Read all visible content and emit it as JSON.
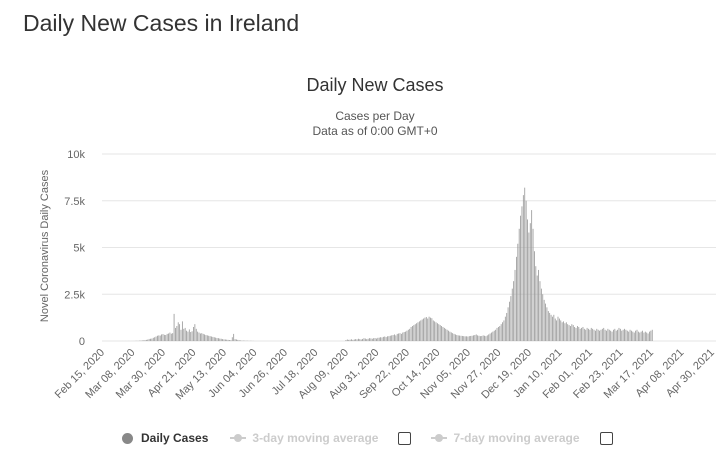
{
  "page": {
    "title": "Daily New Cases in Ireland"
  },
  "chart_data": {
    "type": "bar",
    "title": "Daily New Cases",
    "subtitle_1": "Cases per Day",
    "subtitle_2": "Data as of 0:00 GMT+0",
    "ylabel": "Novel Coronavirus Daily Cases",
    "xlabel": "",
    "ylim": [
      0,
      10000
    ],
    "y_ticks": [
      0,
      2500,
      5000,
      7500,
      10000
    ],
    "y_tick_labels": [
      "0",
      "2.5k",
      "5k",
      "7.5k",
      "10k"
    ],
    "x_start": "Feb 15, 2020",
    "x_end": "May 03, 2021",
    "x_tick_labels": [
      "Feb 15, 2020",
      "Mar 08, 2020",
      "Mar 30, 2020",
      "Apr 21, 2020",
      "May 13, 2020",
      "Jun 04, 2020",
      "Jun 26, 2020",
      "Jul 18, 2020",
      "Aug 09, 2020",
      "Aug 31, 2020",
      "Sep 22, 2020",
      "Oct 14, 2020",
      "Nov 05, 2020",
      "Nov 27, 2020",
      "Dec 19, 2020",
      "Jan 10, 2021",
      "Feb 01, 2021",
      "Feb 23, 2021",
      "Mar 17, 2021",
      "Apr 08, 2021",
      "Apr 30, 2021"
    ],
    "bar_color": "#999999",
    "grid": true,
    "series_segments": [
      {
        "name": "Daily Cases",
        "start": "Feb 15, 2020",
        "values": [
          0,
          0,
          0,
          0,
          0,
          0,
          0,
          0,
          0,
          0,
          0,
          0,
          0,
          0,
          0,
          1,
          0,
          1,
          0,
          2,
          1,
          2,
          1,
          3,
          6,
          8,
          10,
          15,
          20,
          35,
          30,
          50,
          60,
          75,
          110,
          120,
          130,
          170,
          200,
          240,
          280,
          300,
          290,
          350,
          370,
          330,
          320,
          380,
          400,
          450,
          390,
          420,
          1450,
          700,
          800,
          1000,
          900,
          600,
          1050,
          650,
          700,
          550,
          500,
          620,
          480,
          520,
          750,
          900,
          650,
          500,
          450,
          400,
          420,
          380,
          350,
          320,
          300,
          280,
          260,
          240,
          220,
          200,
          180,
          160,
          150,
          130,
          120,
          100,
          90,
          80,
          70,
          60,
          50,
          45,
          200,
          380,
          100,
          80,
          60,
          40,
          30,
          25,
          20,
          18,
          15,
          12,
          10,
          10,
          8,
          8
        ]
      },
      {
        "name": "Daily Cases",
        "start": "Aug 09, 2020",
        "values": [
          50,
          80,
          60,
          70,
          90,
          60,
          80,
          100,
          90,
          120,
          100,
          80,
          110,
          150,
          130,
          100,
          120,
          150,
          140,
          120,
          150,
          160,
          130,
          170,
          180,
          200,
          190,
          220,
          240,
          210,
          250,
          260,
          280,
          300,
          320,
          350,
          300,
          380,
          400,
          420,
          380,
          450,
          480,
          500,
          550,
          600,
          650,
          750,
          800,
          850,
          900,
          950,
          1000,
          1050,
          1100,
          1150,
          1200,
          1250,
          1280,
          1200,
          1300,
          1250,
          1220,
          1100,
          1050,
          1000,
          950,
          900,
          850,
          800,
          750,
          700,
          650,
          600,
          550,
          500,
          460,
          420,
          380,
          350,
          320,
          300,
          290,
          280,
          270,
          260,
          250,
          250,
          240,
          260,
          270,
          280,
          300,
          320,
          350,
          300,
          280,
          260,
          270,
          300,
          280,
          260,
          300,
          350,
          400,
          450,
          500,
          550,
          600,
          700,
          750,
          800,
          900,
          1000,
          1100,
          1300,
          1500,
          1800,
          2100,
          2400,
          2800,
          3200,
          3800,
          4500,
          5200,
          6000,
          6700,
          7200,
          7800,
          8200,
          7500,
          6500,
          5800,
          6300,
          7000,
          6000,
          4800,
          4000,
          3500,
          3800,
          3200,
          2800,
          2500,
          2200,
          2000,
          1800,
          1600,
          1500,
          1400,
          1300,
          1400,
          1200,
          1100,
          1300,
          1200,
          1100,
          1000,
          1050,
          950,
          1000,
          900,
          850,
          800,
          900,
          850,
          750,
          700,
          800,
          750,
          650,
          700,
          750,
          650,
          600,
          700,
          650,
          600,
          700,
          650,
          600,
          550,
          650,
          600,
          550,
          600,
          650,
          700,
          600,
          550,
          650,
          600,
          550,
          500,
          600,
          650,
          550,
          600,
          700,
          650,
          550,
          600,
          650,
          600,
          550,
          500,
          600,
          550,
          500,
          450,
          550,
          600,
          500,
          450,
          500,
          550,
          450,
          500,
          450,
          400,
          500,
          550,
          600
        ]
      }
    ]
  },
  "legend": {
    "items": [
      {
        "label": "Daily Cases",
        "active": true
      },
      {
        "label": "3-day moving average",
        "active": false
      },
      {
        "label": "7-day moving average",
        "active": false
      }
    ]
  },
  "colors": {
    "bars": "#999999",
    "grid": "#e6e6e6",
    "axis_text": "#666666",
    "inactive": "#cccccc"
  }
}
